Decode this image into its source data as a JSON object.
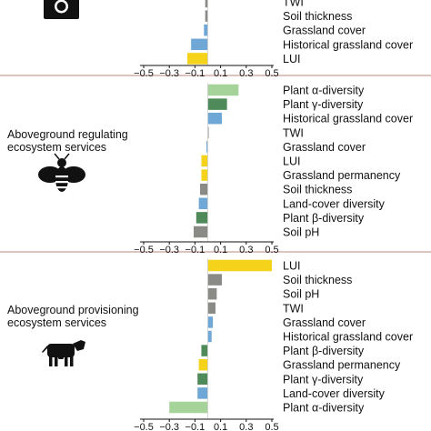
{
  "colors": {
    "LUI": "#f5d31a",
    "Grassland permanency": "#f5d31a",
    "Historical grassland cover": "#6fa8d6",
    "Grassland cover": "#6fa8d6",
    "Land-cover diversity": "#6fa8d6",
    "TWI": "#8a8a86",
    "Soil thickness": "#8a8a86",
    "Soil pH": "#8a8a86",
    "Plant α-diversity": "#a6d39a",
    "Plant γ-diversity": "#4f8a5a",
    "Plant β-diversity": "#4f8a5a",
    "separator": "#c9a09c",
    "axis": "#111111"
  },
  "chart_data": [
    {
      "type": "bar",
      "orientation": "horizontal",
      "panel_title": "",
      "icon": "camera-icon",
      "xlim": [
        -0.5,
        0.5
      ],
      "xticks": [
        "−0.5",
        "−0.3",
        "−0.1",
        "0.1",
        "0.3",
        "0.5"
      ],
      "xtick_values": [
        -0.5,
        -0.3,
        -0.1,
        0.1,
        0.3,
        0.5
      ],
      "categories": [
        "TWI",
        "Soil thickness",
        "Grassland cover",
        "Historical grassland cover",
        "LUI"
      ],
      "values": [
        -0.02,
        -0.02,
        -0.03,
        -0.13,
        -0.16
      ]
    },
    {
      "type": "bar",
      "orientation": "horizontal",
      "panel_title": "Aboveground regulating ecosystem services",
      "icon": "bee-icon",
      "xlim": [
        -0.5,
        0.5
      ],
      "xticks": [
        "−0.5",
        "−0.3",
        "−0.1",
        "0.1",
        "0.3",
        "0.5"
      ],
      "xtick_values": [
        -0.5,
        -0.3,
        -0.1,
        0.1,
        0.3,
        0.5
      ],
      "categories": [
        "Plant α-diversity",
        "Plant γ-diversity",
        "Historical grassland cover",
        "TWI",
        "Grassland cover",
        "LUI",
        "Grassland permanency",
        "Soil thickness",
        "Land-cover diversity",
        "Plant β-diversity",
        "Soil pH"
      ],
      "values": [
        0.24,
        0.15,
        0.11,
        0.0,
        -0.01,
        -0.05,
        -0.05,
        -0.06,
        -0.07,
        -0.09,
        -0.11
      ]
    },
    {
      "type": "bar",
      "orientation": "horizontal",
      "panel_title": "Aboveground provisioning ecosystem services",
      "icon": "cow-icon",
      "xlim": [
        -0.5,
        0.5
      ],
      "xticks": [
        "−0.5",
        "−0.3",
        "−0.1",
        "0.1",
        "0.3",
        "0.5"
      ],
      "xtick_values": [
        -0.5,
        -0.3,
        -0.1,
        0.1,
        0.3,
        0.5
      ],
      "categories": [
        "LUI",
        "Soil thickness",
        "Soil pH",
        "TWI",
        "Grassland cover",
        "Historical grassland cover",
        "Plant β-diversity",
        "Grassland permanency",
        "Plant γ-diversity",
        "Land-cover diversity",
        "Plant α-diversity"
      ],
      "values": [
        0.5,
        0.11,
        0.07,
        0.06,
        0.04,
        0.03,
        -0.05,
        -0.07,
        -0.08,
        -0.08,
        -0.3
      ]
    }
  ]
}
